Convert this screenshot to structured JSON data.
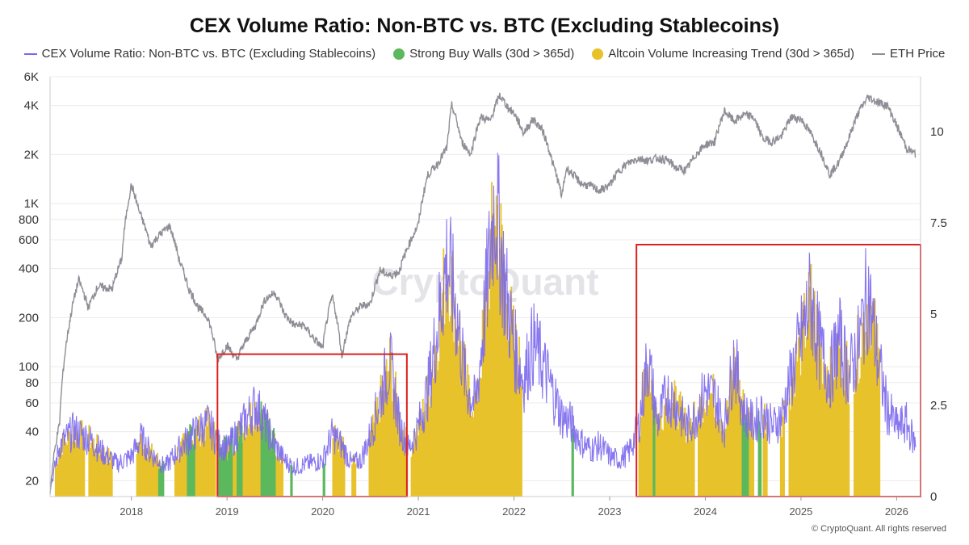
{
  "chart_data": {
    "type": "line",
    "title": "CEX Volume Ratio: Non-BTC vs. BTC (Excluding Stablecoins)",
    "legend_position": "top",
    "watermark": "CryptoQuant",
    "copyright": "© CryptoQuant. All rights reserved",
    "x_axis": {
      "ticks": [
        "2018",
        "2019",
        "2020",
        "2021",
        "2022",
        "2023",
        "2024",
        "2025",
        "2026"
      ],
      "range": [
        2017.15,
        2026.25
      ]
    },
    "y_left": {
      "scale": "log",
      "range": [
        16,
        6000
      ],
      "ticks": [
        {
          "v": 20,
          "label": "20"
        },
        {
          "v": 40,
          "label": "40"
        },
        {
          "v": 60,
          "label": "60"
        },
        {
          "v": 80,
          "label": "80"
        },
        {
          "v": 100,
          "label": "100"
        },
        {
          "v": 200,
          "label": "200"
        },
        {
          "v": 400,
          "label": "400"
        },
        {
          "v": 600,
          "label": "600"
        },
        {
          "v": 800,
          "label": "800"
        },
        {
          "v": 1000,
          "label": "1K"
        },
        {
          "v": 2000,
          "label": "2K"
        },
        {
          "v": 4000,
          "label": "4K"
        },
        {
          "v": 6000,
          "label": "6K"
        }
      ]
    },
    "y_right": {
      "scale": "linear",
      "range": [
        0,
        11.5
      ],
      "ticks": [
        {
          "v": 0,
          "label": "0"
        },
        {
          "v": 2.5,
          "label": "2.5"
        },
        {
          "v": 5,
          "label": "5"
        },
        {
          "v": 7.5,
          "label": "7.5"
        },
        {
          "v": 10,
          "label": "10"
        }
      ]
    },
    "series": [
      {
        "name": "CEX Volume Ratio: Non-BTC vs. BTC (Excluding Stablecoins)",
        "axis": "right",
        "color": "#7b68ee",
        "points": [
          [
            2017.15,
            0.2
          ],
          [
            2017.25,
            1.4
          ],
          [
            2017.4,
            1.8
          ],
          [
            2017.55,
            1.6
          ],
          [
            2017.7,
            1.2
          ],
          [
            2017.85,
            0.9
          ],
          [
            2018.0,
            1.1
          ],
          [
            2018.1,
            1.6
          ],
          [
            2018.2,
            1.2
          ],
          [
            2018.35,
            0.8
          ],
          [
            2018.5,
            1.3
          ],
          [
            2018.6,
            1.6
          ],
          [
            2018.7,
            1.8
          ],
          [
            2018.8,
            2.0
          ],
          [
            2018.9,
            1.5
          ],
          [
            2019.0,
            1.3
          ],
          [
            2019.1,
            1.7
          ],
          [
            2019.2,
            2.1
          ],
          [
            2019.3,
            2.5
          ],
          [
            2019.4,
            2.0
          ],
          [
            2019.5,
            1.4
          ],
          [
            2019.6,
            1.0
          ],
          [
            2019.7,
            0.8
          ],
          [
            2019.85,
            0.9
          ],
          [
            2020.0,
            1.0
          ],
          [
            2020.1,
            1.7
          ],
          [
            2020.2,
            1.4
          ],
          [
            2020.3,
            0.9
          ],
          [
            2020.4,
            1.0
          ],
          [
            2020.5,
            1.7
          ],
          [
            2020.6,
            2.7
          ],
          [
            2020.7,
            3.7
          ],
          [
            2020.8,
            2.0
          ],
          [
            2020.9,
            1.3
          ],
          [
            2021.0,
            1.9
          ],
          [
            2021.1,
            2.9
          ],
          [
            2021.2,
            4.6
          ],
          [
            2021.3,
            6.5
          ],
          [
            2021.4,
            5.0
          ],
          [
            2021.5,
            3.0
          ],
          [
            2021.6,
            2.5
          ],
          [
            2021.7,
            5.2
          ],
          [
            2021.8,
            8.2
          ],
          [
            2021.9,
            5.9
          ],
          [
            2022.0,
            4.1
          ],
          [
            2022.1,
            3.2
          ],
          [
            2022.2,
            4.2
          ],
          [
            2022.3,
            3.6
          ],
          [
            2022.4,
            2.9
          ],
          [
            2022.5,
            2.2
          ],
          [
            2022.6,
            2.0
          ],
          [
            2022.7,
            1.5
          ],
          [
            2022.8,
            1.3
          ],
          [
            2022.9,
            1.4
          ],
          [
            2023.0,
            1.1
          ],
          [
            2023.1,
            1.0
          ],
          [
            2023.2,
            1.2
          ],
          [
            2023.3,
            1.9
          ],
          [
            2023.4,
            3.8
          ],
          [
            2023.5,
            2.0
          ],
          [
            2023.6,
            2.8
          ],
          [
            2023.7,
            2.5
          ],
          [
            2023.8,
            1.9
          ],
          [
            2023.9,
            2.2
          ],
          [
            2024.0,
            2.9
          ],
          [
            2024.1,
            2.7
          ],
          [
            2024.2,
            1.9
          ],
          [
            2024.3,
            3.8
          ],
          [
            2024.4,
            2.3
          ],
          [
            2024.5,
            2.0
          ],
          [
            2024.6,
            2.3
          ],
          [
            2024.7,
            1.9
          ],
          [
            2024.8,
            2.2
          ],
          [
            2024.9,
            3.3
          ],
          [
            2025.0,
            4.3
          ],
          [
            2025.1,
            5.4
          ],
          [
            2025.2,
            4.0
          ],
          [
            2025.3,
            3.3
          ],
          [
            2025.4,
            4.3
          ],
          [
            2025.5,
            3.3
          ],
          [
            2025.6,
            4.1
          ],
          [
            2025.7,
            5.6
          ],
          [
            2025.8,
            3.8
          ],
          [
            2025.9,
            2.4
          ],
          [
            2026.0,
            1.9
          ],
          [
            2026.1,
            2.0
          ],
          [
            2026.2,
            1.4
          ]
        ]
      },
      {
        "name": "ETH Price",
        "axis": "left",
        "color": "#8e8e96",
        "points": [
          [
            2017.15,
            17
          ],
          [
            2017.25,
            45
          ],
          [
            2017.35,
            180
          ],
          [
            2017.45,
            340
          ],
          [
            2017.55,
            230
          ],
          [
            2017.65,
            310
          ],
          [
            2017.8,
            300
          ],
          [
            2017.9,
            460
          ],
          [
            2018.0,
            1300
          ],
          [
            2018.08,
            900
          ],
          [
            2018.2,
            550
          ],
          [
            2018.3,
            650
          ],
          [
            2018.4,
            730
          ],
          [
            2018.5,
            450
          ],
          [
            2018.6,
            300
          ],
          [
            2018.7,
            230
          ],
          [
            2018.8,
            200
          ],
          [
            2018.9,
            110
          ],
          [
            2019.0,
            135
          ],
          [
            2019.1,
            110
          ],
          [
            2019.2,
            145
          ],
          [
            2019.3,
            180
          ],
          [
            2019.4,
            260
          ],
          [
            2019.5,
            285
          ],
          [
            2019.6,
            210
          ],
          [
            2019.7,
            180
          ],
          [
            2019.8,
            180
          ],
          [
            2019.9,
            150
          ],
          [
            2020.0,
            130
          ],
          [
            2020.1,
            270
          ],
          [
            2020.2,
            115
          ],
          [
            2020.3,
            205
          ],
          [
            2020.4,
            235
          ],
          [
            2020.5,
            245
          ],
          [
            2020.6,
            390
          ],
          [
            2020.7,
            360
          ],
          [
            2020.8,
            385
          ],
          [
            2020.9,
            560
          ],
          [
            2021.0,
            740
          ],
          [
            2021.1,
            1500
          ],
          [
            2021.2,
            1750
          ],
          [
            2021.3,
            2200
          ],
          [
            2021.35,
            4000
          ],
          [
            2021.45,
            2400
          ],
          [
            2021.55,
            2000
          ],
          [
            2021.65,
            3400
          ],
          [
            2021.75,
            3200
          ],
          [
            2021.85,
            4600
          ],
          [
            2021.95,
            3800
          ],
          [
            2022.0,
            3600
          ],
          [
            2022.1,
            2700
          ],
          [
            2022.2,
            3300
          ],
          [
            2022.3,
            2800
          ],
          [
            2022.4,
            1800
          ],
          [
            2022.5,
            1100
          ],
          [
            2022.55,
            1650
          ],
          [
            2022.7,
            1330
          ],
          [
            2022.8,
            1280
          ],
          [
            2022.9,
            1200
          ],
          [
            2023.0,
            1300
          ],
          [
            2023.1,
            1600
          ],
          [
            2023.2,
            1780
          ],
          [
            2023.3,
            1900
          ],
          [
            2023.4,
            1840
          ],
          [
            2023.5,
            1900
          ],
          [
            2023.6,
            1850
          ],
          [
            2023.7,
            1650
          ],
          [
            2023.8,
            1600
          ],
          [
            2023.9,
            2000
          ],
          [
            2024.0,
            2300
          ],
          [
            2024.1,
            2400
          ],
          [
            2024.2,
            3700
          ],
          [
            2024.3,
            3200
          ],
          [
            2024.4,
            3500
          ],
          [
            2024.5,
            3400
          ],
          [
            2024.6,
            2500
          ],
          [
            2024.7,
            2400
          ],
          [
            2024.8,
            2600
          ],
          [
            2024.9,
            3400
          ],
          [
            2025.0,
            3300
          ],
          [
            2025.1,
            2700
          ],
          [
            2025.2,
            2100
          ],
          [
            2025.3,
            1500
          ],
          [
            2025.4,
            1800
          ],
          [
            2025.5,
            2500
          ],
          [
            2025.6,
            3600
          ],
          [
            2025.7,
            4500
          ],
          [
            2025.8,
            4200
          ],
          [
            2025.9,
            4000
          ],
          [
            2026.0,
            3000
          ],
          [
            2026.1,
            2200
          ],
          [
            2026.2,
            2000
          ]
        ]
      },
      {
        "name": "Strong Buy Walls (30d > 365d)",
        "type": "bar-band",
        "axis": "right",
        "color": "#5cb85c",
        "periods": [
          [
            2018.28,
            2018.33
          ],
          [
            2018.58,
            2018.66
          ],
          [
            2018.9,
            2019.05
          ],
          [
            2019.1,
            2019.15
          ],
          [
            2019.35,
            2019.5
          ],
          [
            2019.66,
            2019.68
          ],
          [
            2020.0,
            2020.02
          ],
          [
            2022.6,
            2022.62
          ],
          [
            2023.45,
            2023.47
          ],
          [
            2024.38,
            2024.45
          ],
          [
            2024.55,
            2024.58
          ]
        ]
      },
      {
        "name": "Altcoin Volume Increasing Trend (30d > 365d)",
        "type": "bar-band",
        "axis": "right",
        "color": "#e8c22a",
        "periods": [
          [
            2017.2,
            2017.5
          ],
          [
            2017.55,
            2017.8
          ],
          [
            2018.05,
            2018.3
          ],
          [
            2018.45,
            2018.88
          ],
          [
            2018.95,
            2019.58
          ],
          [
            2020.1,
            2020.22
          ],
          [
            2020.3,
            2020.34
          ],
          [
            2020.48,
            2020.88
          ],
          [
            2020.92,
            2022.08
          ],
          [
            2023.3,
            2023.88
          ],
          [
            2023.92,
            2024.5
          ],
          [
            2024.6,
            2024.64
          ],
          [
            2024.78,
            2024.82
          ],
          [
            2024.87,
            2025.5
          ],
          [
            2025.55,
            2025.82
          ]
        ]
      }
    ],
    "highlight_boxes": [
      {
        "x0": 2018.9,
        "x1": 2020.88,
        "y0": 0,
        "y1": 3.9,
        "color": "#dd1f1f"
      },
      {
        "x0": 2023.28,
        "x1": 2026.25,
        "y0": 0,
        "y1": 6.9,
        "color": "#dd1f1f"
      }
    ]
  }
}
